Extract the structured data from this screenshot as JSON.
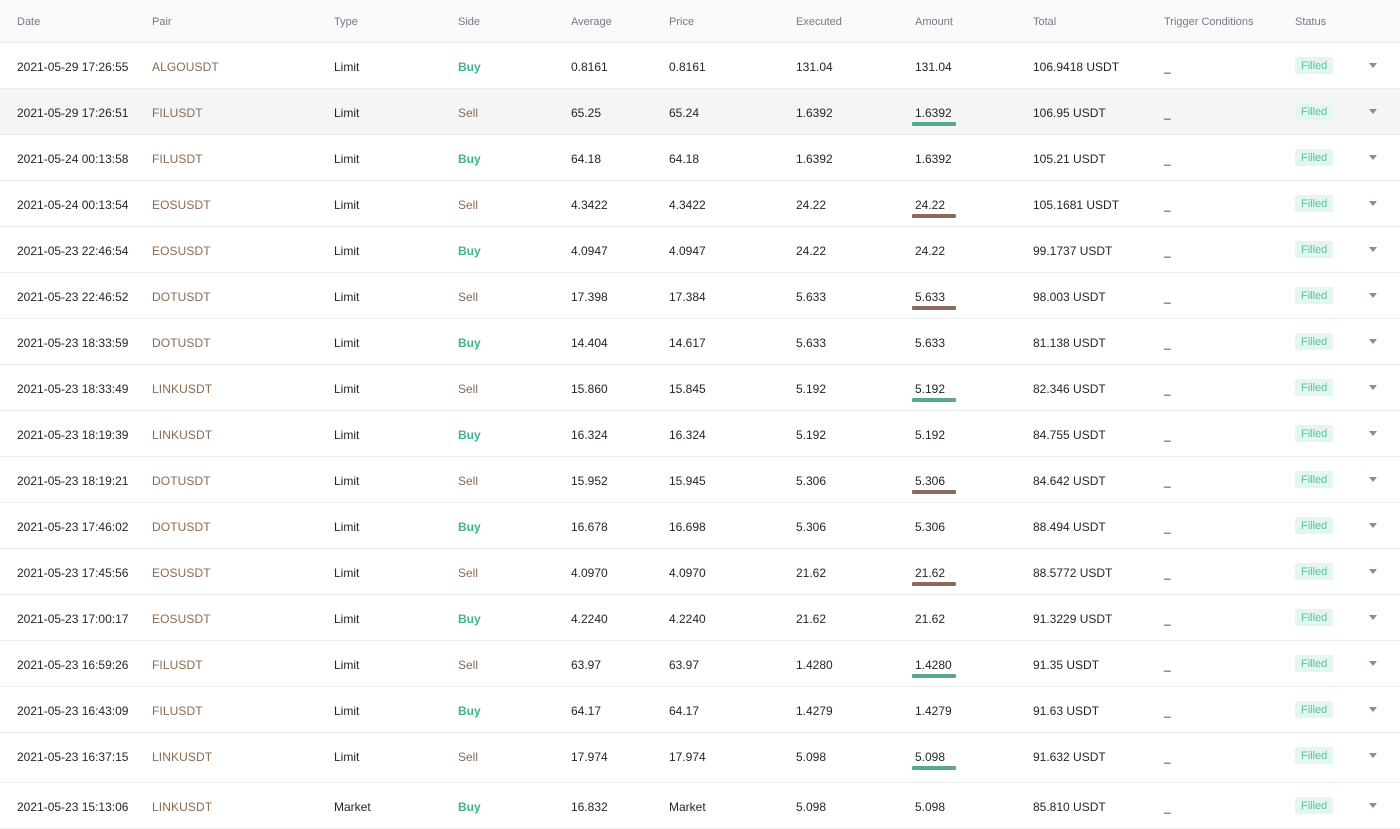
{
  "colors": {
    "buy": "#3db48c",
    "sell": "#8a6a4f",
    "underline_green": "#5aa88c",
    "underline_brown": "#8a6a60",
    "status_text": "#55c3a0",
    "status_bg": "#e3f6ef"
  },
  "headers": {
    "date": "Date",
    "pair": "Pair",
    "type": "Type",
    "side": "Side",
    "average": "Average",
    "price": "Price",
    "executed": "Executed",
    "amount": "Amount",
    "total": "Total",
    "trigger": "Trigger Conditions",
    "status": "Status"
  },
  "icons": {
    "row_expand": "chevron-down-icon"
  },
  "rows": [
    {
      "date": "2021-05-29 17:26:55",
      "pair": "ALGOUSDT",
      "type": "Limit",
      "side": "Buy",
      "average": "0.8161",
      "price": "0.8161",
      "executed": "131.04",
      "amount": "131.04",
      "total": "106.9418 USDT",
      "trigger": "_",
      "status": "Filled",
      "underline": "",
      "highlight": false
    },
    {
      "date": "2021-05-29 17:26:51",
      "pair": "FILUSDT",
      "type": "Limit",
      "side": "Sell",
      "average": "65.25",
      "price": "65.24",
      "executed": "1.6392",
      "amount": "1.6392",
      "total": "106.95 USDT",
      "trigger": "_",
      "status": "Filled",
      "underline": "green",
      "highlight": true
    },
    {
      "date": "2021-05-24 00:13:58",
      "pair": "FILUSDT",
      "type": "Limit",
      "side": "Buy",
      "average": "64.18",
      "price": "64.18",
      "executed": "1.6392",
      "amount": "1.6392",
      "total": "105.21 USDT",
      "trigger": "_",
      "status": "Filled",
      "underline": "",
      "highlight": false
    },
    {
      "date": "2021-05-24 00:13:54",
      "pair": "EOSUSDT",
      "type": "Limit",
      "side": "Sell",
      "average": "4.3422",
      "price": "4.3422",
      "executed": "24.22",
      "amount": "24.22",
      "total": "105.1681 USDT",
      "trigger": "_",
      "status": "Filled",
      "underline": "brown",
      "highlight": false
    },
    {
      "date": "2021-05-23 22:46:54",
      "pair": "EOSUSDT",
      "type": "Limit",
      "side": "Buy",
      "average": "4.0947",
      "price": "4.0947",
      "executed": "24.22",
      "amount": "24.22",
      "total": "99.1737 USDT",
      "trigger": "_",
      "status": "Filled",
      "underline": "",
      "highlight": false
    },
    {
      "date": "2021-05-23 22:46:52",
      "pair": "DOTUSDT",
      "type": "Limit",
      "side": "Sell",
      "average": "17.398",
      "price": "17.384",
      "executed": "5.633",
      "amount": "5.633",
      "total": "98.003 USDT",
      "trigger": "_",
      "status": "Filled",
      "underline": "brown",
      "highlight": false
    },
    {
      "date": "2021-05-23 18:33:59",
      "pair": "DOTUSDT",
      "type": "Limit",
      "side": "Buy",
      "average": "14.404",
      "price": "14.617",
      "executed": "5.633",
      "amount": "5.633",
      "total": "81.138 USDT",
      "trigger": "_",
      "status": "Filled",
      "underline": "",
      "highlight": false
    },
    {
      "date": "2021-05-23 18:33:49",
      "pair": "LINKUSDT",
      "type": "Limit",
      "side": "Sell",
      "average": "15.860",
      "price": "15.845",
      "executed": "5.192",
      "amount": "5.192",
      "total": "82.346 USDT",
      "trigger": "_",
      "status": "Filled",
      "underline": "green",
      "highlight": false
    },
    {
      "date": "2021-05-23 18:19:39",
      "pair": "LINKUSDT",
      "type": "Limit",
      "side": "Buy",
      "average": "16.324",
      "price": "16.324",
      "executed": "5.192",
      "amount": "5.192",
      "total": "84.755 USDT",
      "trigger": "_",
      "status": "Filled",
      "underline": "",
      "highlight": false
    },
    {
      "date": "2021-05-23 18:19:21",
      "pair": "DOTUSDT",
      "type": "Limit",
      "side": "Sell",
      "average": "15.952",
      "price": "15.945",
      "executed": "5.306",
      "amount": "5.306",
      "total": "84.642 USDT",
      "trigger": "_",
      "status": "Filled",
      "underline": "brown",
      "highlight": false
    },
    {
      "date": "2021-05-23 17:46:02",
      "pair": "DOTUSDT",
      "type": "Limit",
      "side": "Buy",
      "average": "16.678",
      "price": "16.698",
      "executed": "5.306",
      "amount": "5.306",
      "total": "88.494 USDT",
      "trigger": "_",
      "status": "Filled",
      "underline": "",
      "highlight": false
    },
    {
      "date": "2021-05-23 17:45:56",
      "pair": "EOSUSDT",
      "type": "Limit",
      "side": "Sell",
      "average": "4.0970",
      "price": "4.0970",
      "executed": "21.62",
      "amount": "21.62",
      "total": "88.5772 USDT",
      "trigger": "_",
      "status": "Filled",
      "underline": "brown",
      "highlight": false
    },
    {
      "date": "2021-05-23 17:00:17",
      "pair": "EOSUSDT",
      "type": "Limit",
      "side": "Buy",
      "average": "4.2240",
      "price": "4.2240",
      "executed": "21.62",
      "amount": "21.62",
      "total": "91.3229 USDT",
      "trigger": "_",
      "status": "Filled",
      "underline": "",
      "highlight": false
    },
    {
      "date": "2021-05-23 16:59:26",
      "pair": "FILUSDT",
      "type": "Limit",
      "side": "Sell",
      "average": "63.97",
      "price": "63.97",
      "executed": "1.4280",
      "amount": "1.4280",
      "total": "91.35 USDT",
      "trigger": "_",
      "status": "Filled",
      "underline": "green",
      "highlight": false
    },
    {
      "date": "2021-05-23 16:43:09",
      "pair": "FILUSDT",
      "type": "Limit",
      "side": "Buy",
      "average": "64.17",
      "price": "64.17",
      "executed": "1.4279",
      "amount": "1.4279",
      "total": "91.63 USDT",
      "trigger": "_",
      "status": "Filled",
      "underline": "",
      "highlight": false
    },
    {
      "date": "2021-05-23 16:37:15",
      "pair": "LINKUSDT",
      "type": "Limit",
      "side": "Sell",
      "average": "17.974",
      "price": "17.974",
      "executed": "5.098",
      "amount": "5.098",
      "total": "91.632 USDT",
      "trigger": "_",
      "status": "Filled",
      "underline": "green",
      "highlight": false
    },
    {
      "date": "2021-05-23 15:13:06",
      "pair": "LINKUSDT",
      "type": "Market",
      "side": "Buy",
      "average": "16.832",
      "price": "Market",
      "executed": "5.098",
      "amount": "5.098",
      "total": "85.810 USDT",
      "trigger": "_",
      "status": "Filled",
      "underline": "",
      "highlight": false
    }
  ]
}
